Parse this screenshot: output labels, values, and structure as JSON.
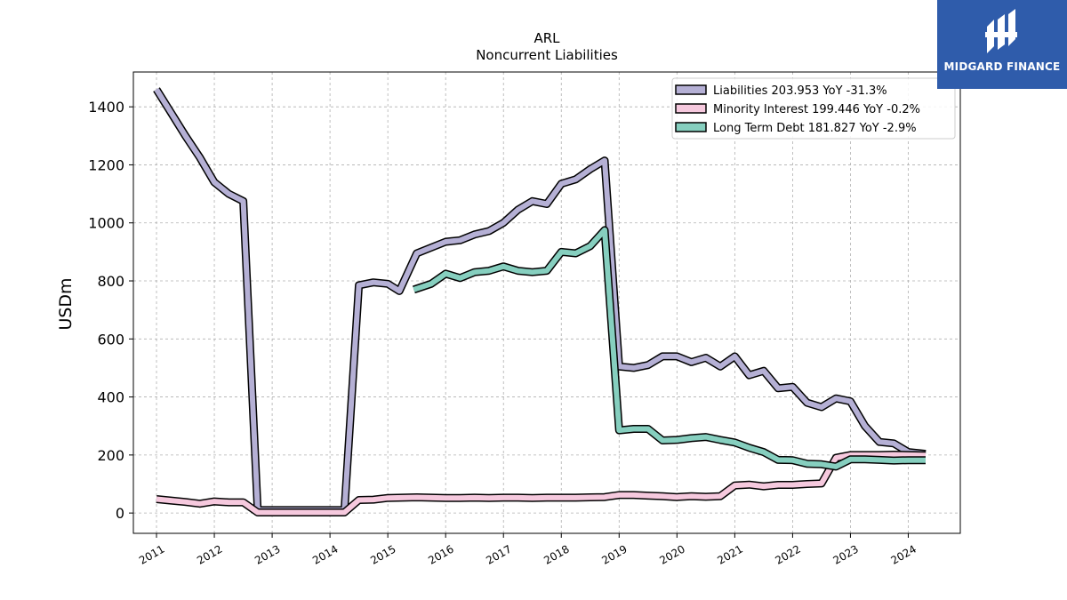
{
  "chart_data": {
    "type": "line",
    "title": "ARL",
    "subtitle": "Noncurrent  Liabilities",
    "ylabel": "USDm",
    "xlabel": "",
    "xlim": [
      2010.6,
      2024.9
    ],
    "ylim": [
      -70,
      1520
    ],
    "yticks": [
      0,
      200,
      400,
      600,
      800,
      1000,
      1200,
      1400
    ],
    "xticks": [
      "2011",
      "2012",
      "2013",
      "2014",
      "2015",
      "2016",
      "2017",
      "2018",
      "2019",
      "2020",
      "2021",
      "2022",
      "2023",
      "2024"
    ],
    "grid": true,
    "legend_position": "top-right",
    "series": [
      {
        "name": "Liabilities",
        "legend": "Liabilities  203.953 YoY -31.3%",
        "color": "#b5b0d5",
        "points": [
          [
            2011.0,
            1460
          ],
          [
            2011.25,
            1380
          ],
          [
            2011.5,
            1300
          ],
          [
            2011.75,
            1225
          ],
          [
            2012.0,
            1140
          ],
          [
            2012.25,
            1100
          ],
          [
            2012.5,
            1075
          ],
          [
            2012.75,
            10
          ],
          [
            2013.0,
            10
          ],
          [
            2013.25,
            10
          ],
          [
            2013.5,
            10
          ],
          [
            2013.75,
            10
          ],
          [
            2014.0,
            10
          ],
          [
            2014.25,
            10
          ],
          [
            2014.5,
            785
          ],
          [
            2014.75,
            795
          ],
          [
            2015.0,
            790
          ],
          [
            2015.2,
            765
          ],
          [
            2015.5,
            895
          ],
          [
            2015.75,
            915
          ],
          [
            2016.0,
            935
          ],
          [
            2016.25,
            940
          ],
          [
            2016.5,
            960
          ],
          [
            2016.75,
            972
          ],
          [
            2017.0,
            1000
          ],
          [
            2017.25,
            1045
          ],
          [
            2017.5,
            1075
          ],
          [
            2017.75,
            1065
          ],
          [
            2018.0,
            1135
          ],
          [
            2018.25,
            1150
          ],
          [
            2018.5,
            1185
          ],
          [
            2018.75,
            1215
          ],
          [
            2019.0,
            505
          ],
          [
            2019.25,
            500
          ],
          [
            2019.5,
            510
          ],
          [
            2019.75,
            540
          ],
          [
            2020.0,
            540
          ],
          [
            2020.25,
            520
          ],
          [
            2020.5,
            535
          ],
          [
            2020.75,
            505
          ],
          [
            2021.0,
            540
          ],
          [
            2021.25,
            475
          ],
          [
            2021.5,
            490
          ],
          [
            2021.75,
            430
          ],
          [
            2022.0,
            435
          ],
          [
            2022.25,
            380
          ],
          [
            2022.5,
            365
          ],
          [
            2022.75,
            395
          ],
          [
            2023.0,
            385
          ],
          [
            2023.25,
            300
          ],
          [
            2023.5,
            245
          ],
          [
            2023.75,
            240
          ],
          [
            2024.0,
            210
          ],
          [
            2024.3,
            204
          ]
        ]
      },
      {
        "name": "Minority Interest",
        "legend": "Minority Interest  199.446 YoY -0.2%",
        "color": "#f6c9de",
        "points": [
          [
            2011.0,
            48
          ],
          [
            2011.25,
            43
          ],
          [
            2011.5,
            38
          ],
          [
            2011.75,
            32
          ],
          [
            2012.0,
            40
          ],
          [
            2012.25,
            37
          ],
          [
            2012.5,
            37
          ],
          [
            2012.75,
            2
          ],
          [
            2013.0,
            2
          ],
          [
            2013.25,
            2
          ],
          [
            2013.5,
            2
          ],
          [
            2013.75,
            2
          ],
          [
            2014.0,
            2
          ],
          [
            2014.25,
            2
          ],
          [
            2014.5,
            45
          ],
          [
            2014.75,
            46
          ],
          [
            2015.0,
            52
          ],
          [
            2015.25,
            53
          ],
          [
            2015.5,
            54
          ],
          [
            2015.75,
            53
          ],
          [
            2016.0,
            52
          ],
          [
            2016.25,
            52
          ],
          [
            2016.5,
            53
          ],
          [
            2016.75,
            52
          ],
          [
            2017.0,
            53
          ],
          [
            2017.25,
            53
          ],
          [
            2017.5,
            52
          ],
          [
            2017.75,
            53
          ],
          [
            2018.0,
            53
          ],
          [
            2018.25,
            53
          ],
          [
            2018.5,
            54
          ],
          [
            2018.75,
            55
          ],
          [
            2019.0,
            62
          ],
          [
            2019.25,
            62
          ],
          [
            2019.5,
            60
          ],
          [
            2019.75,
            58
          ],
          [
            2020.0,
            55
          ],
          [
            2020.25,
            58
          ],
          [
            2020.5,
            56
          ],
          [
            2020.75,
            58
          ],
          [
            2021.0,
            95
          ],
          [
            2021.25,
            98
          ],
          [
            2021.5,
            92
          ],
          [
            2021.75,
            97
          ],
          [
            2022.0,
            97
          ],
          [
            2022.25,
            100
          ],
          [
            2022.5,
            102
          ],
          [
            2022.75,
            190
          ],
          [
            2023.0,
            200
          ],
          [
            2023.25,
            200
          ],
          [
            2023.5,
            200
          ],
          [
            2023.75,
            201
          ],
          [
            2024.0,
            200
          ],
          [
            2024.3,
            199
          ]
        ]
      },
      {
        "name": "Long Term Debt",
        "legend": "Long Term Debt  181.827 YoY -2.9%",
        "color": "#86cfbf",
        "points": [
          [
            2015.45,
            770
          ],
          [
            2015.75,
            790
          ],
          [
            2016.0,
            825
          ],
          [
            2016.25,
            810
          ],
          [
            2016.5,
            830
          ],
          [
            2016.75,
            835
          ],
          [
            2017.0,
            850
          ],
          [
            2017.25,
            835
          ],
          [
            2017.5,
            830
          ],
          [
            2017.75,
            835
          ],
          [
            2018.0,
            900
          ],
          [
            2018.25,
            895
          ],
          [
            2018.5,
            920
          ],
          [
            2018.75,
            975
          ],
          [
            2019.0,
            285
          ],
          [
            2019.25,
            290
          ],
          [
            2019.5,
            290
          ],
          [
            2019.75,
            250
          ],
          [
            2020.0,
            252
          ],
          [
            2020.25,
            258
          ],
          [
            2020.5,
            262
          ],
          [
            2020.75,
            252
          ],
          [
            2021.0,
            243
          ],
          [
            2021.25,
            225
          ],
          [
            2021.5,
            210
          ],
          [
            2021.75,
            183
          ],
          [
            2022.0,
            182
          ],
          [
            2022.25,
            170
          ],
          [
            2022.5,
            168
          ],
          [
            2022.75,
            160
          ],
          [
            2023.0,
            185
          ],
          [
            2023.25,
            185
          ],
          [
            2023.5,
            183
          ],
          [
            2023.75,
            181
          ],
          [
            2024.0,
            182
          ],
          [
            2024.3,
            182
          ]
        ]
      }
    ]
  },
  "logo": {
    "text": "MIDGARD FINANCE"
  }
}
